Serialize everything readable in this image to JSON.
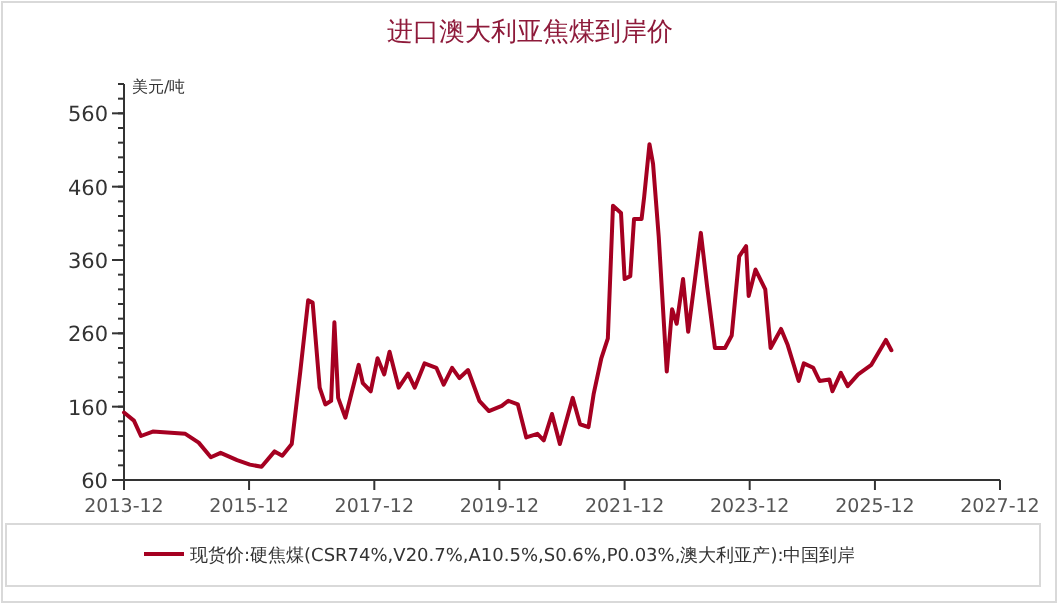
{
  "chart_data": {
    "type": "line",
    "title": "进口澳大利亚焦煤到岸价",
    "ylabel": "美元/吨",
    "xlim": [
      "2013-12",
      "2027-12"
    ],
    "xticks": [
      "2013-12",
      "2015-12",
      "2017-12",
      "2019-12",
      "2021-12",
      "2023-12",
      "2025-12",
      "2027-12"
    ],
    "ylim": [
      60,
      600
    ],
    "yticks": [
      60,
      160,
      260,
      360,
      460,
      560
    ],
    "grid": false,
    "legend": "bottom",
    "marker": "none",
    "line_style": "solid",
    "x": [
      "2013-12-01",
      "2014-01-28",
      "2014-03-10",
      "2014-05-18",
      "2014-11-24",
      "2015-02-10",
      "2015-04-22",
      "2015-06-18",
      "2015-09-22",
      "2015-12-06",
      "2016-02-12",
      "2016-04-28",
      "2016-06-12",
      "2016-08-06",
      "2016-09-25",
      "2016-11-10",
      "2016-12-06",
      "2017-01-16",
      "2017-02-18",
      "2017-03-24",
      "2017-04-12",
      "2017-05-04",
      "2017-06-15",
      "2017-09-01",
      "2017-09-25",
      "2017-11-10",
      "2017-12-20",
      "2018-01-28",
      "2018-02-28",
      "2018-04-22",
      "2018-06-16",
      "2018-07-25",
      "2018-09-20",
      "2018-11-28",
      "2019-01-10",
      "2019-02-28",
      "2019-04-12",
      "2019-06-01",
      "2019-08-06",
      "2019-10-01",
      "2019-12-15",
      "2020-01-22",
      "2020-03-18",
      "2020-05-06",
      "2020-07-10",
      "2020-08-16",
      "2020-10-03",
      "2020-11-18",
      "2021-02-01",
      "2021-03-16",
      "2021-05-04",
      "2021-06-03",
      "2021-07-18",
      "2021-08-25",
      "2021-09-24",
      "2021-11-10",
      "2021-12-01",
      "2022-01-03",
      "2022-01-25",
      "2022-03-10",
      "2022-03-25",
      "2022-04-25",
      "2022-05-16",
      "2022-06-18",
      "2022-08-04",
      "2022-09-04",
      "2022-10-01",
      "2022-11-07",
      "2022-12-07",
      "2023-01-13",
      "2023-02-19",
      "2023-03-27",
      "2023-05-12",
      "2023-07-10",
      "2023-08-18",
      "2023-10-01",
      "2023-11-10",
      "2023-11-25",
      "2024-01-04",
      "2024-03-01",
      "2024-04-01",
      "2024-06-01",
      "2024-07-10",
      "2024-09-12",
      "2024-10-12",
      "2024-12-06",
      "2025-01-12",
      "2025-03-10",
      "2025-03-28",
      "2025-05-16",
      "2025-06-25",
      "2025-08-25",
      "2025-11-10",
      "2026-02-03",
      "2026-03-07"
    ],
    "series": [
      {
        "name": "现货价:硬焦煤(CSR74%,V20.7%,A10.5%,S0.6%,P0.03%,澳大利亚产):中国到岸",
        "color": "#a50021",
        "values": [
          152,
          141,
          120,
          126,
          123,
          111,
          91,
          97,
          87,
          81,
          78,
          99,
          93,
          109,
          208,
          305,
          302,
          186,
          163,
          168,
          275,
          172,
          145,
          217,
          192,
          181,
          226,
          204,
          235,
          186,
          205,
          186,
          219,
          213,
          190,
          213,
          199,
          210,
          168,
          154,
          161,
          168,
          163,
          118,
          123,
          114,
          150,
          109,
          172,
          136,
          132,
          177,
          226,
          253,
          434,
          424,
          334,
          338,
          416,
          416,
          446,
          518,
          491,
          392,
          208,
          293,
          273,
          334,
          262,
          329,
          397,
          325,
          240,
          240,
          257,
          365,
          379,
          311,
          347,
          320,
          240,
          266,
          244,
          195,
          219,
          213,
          195,
          197,
          181,
          206,
          188,
          204,
          217,
          251,
          237
        ]
      }
    ]
  }
}
